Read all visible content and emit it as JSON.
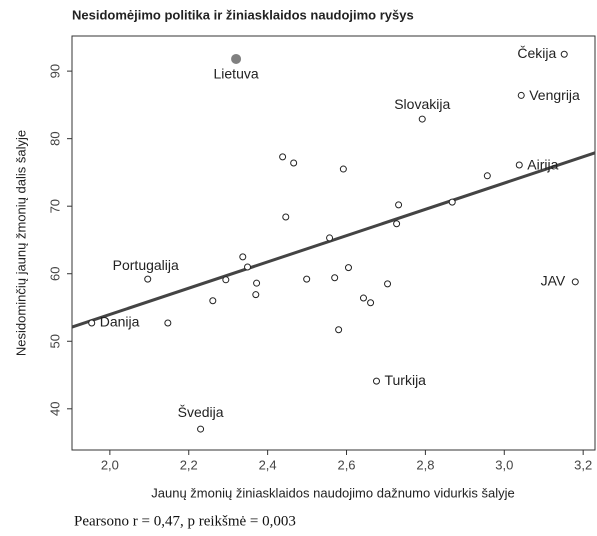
{
  "chart_data": {
    "type": "scatter",
    "title": "Nesidomėjimo politika ir žiniasklaidos naudojimo ryšys",
    "x_label": "Jaunų žmonių žiniasklaidos naudojimo dažnumo vidurkis šalyje",
    "y_label": "Nesidominčių jaunų žmonių dalis šalyje",
    "caption": "Pearsono r = 0,47, p reikšmė = 0,003",
    "x": [
      2.32,
      3.152,
      3.043,
      2.792,
      3.038,
      2.096,
      1.954,
      3.18,
      2.676,
      2.23,
      2.957,
      2.438,
      2.466,
      2.592,
      2.446,
      2.732,
      2.868,
      2.727,
      2.557,
      2.337,
      2.349,
      2.605,
      2.294,
      2.372,
      2.499,
      2.57,
      2.704,
      2.37,
      2.261,
      2.643,
      2.661,
      2.58,
      2.147
    ],
    "values": [
      91.8,
      92.5,
      86.4,
      82.9,
      76.1,
      59.2,
      52.7,
      58.8,
      44.1,
      37.0,
      74.5,
      77.3,
      76.4,
      75.5,
      68.4,
      70.2,
      70.6,
      67.4,
      65.3,
      62.5,
      61.0,
      60.9,
      59.1,
      58.6,
      59.2,
      59.4,
      58.5,
      56.9,
      56.0,
      56.4,
      55.7,
      51.7,
      52.7
    ],
    "labels": [
      "Lietuva",
      "Čekija",
      "Vengrija",
      "Slovakija",
      "Airija",
      "Portugalija",
      "Danija",
      "JAV",
      "Turkija",
      "Švedija",
      null,
      null,
      null,
      null,
      null,
      null,
      null,
      null,
      null,
      null,
      null,
      null,
      null,
      null,
      null,
      null,
      null,
      null,
      null,
      null,
      null,
      null,
      null
    ],
    "colors": [
      "#808080",
      "#ffffff",
      "#ffffff",
      "#ffffff",
      "#ffffff",
      "#ffffff",
      "#ffffff",
      "#ffffff",
      "#ffffff",
      "#ffffff",
      "#ffffff",
      "#ffffff",
      "#ffffff",
      "#ffffff",
      "#ffffff",
      "#ffffff",
      "#ffffff",
      "#ffffff",
      "#ffffff",
      "#ffffff",
      "#ffffff",
      "#ffffff",
      "#ffffff",
      "#ffffff",
      "#ffffff",
      "#ffffff",
      "#ffffff",
      "#ffffff",
      "#ffffff",
      "#ffffff",
      "#ffffff",
      "#ffffff",
      "#ffffff"
    ],
    "trend": {
      "x": [
        1.904,
        3.23
      ],
      "values": [
        52.1,
        77.9
      ],
      "color": "#444444"
    },
    "xlim": [
      1.904,
      3.23
    ],
    "ylim": [
      33.9,
      95.2
    ],
    "xticks": [
      {
        "value": 2.0,
        "label": "2,0"
      },
      {
        "value": 2.2,
        "label": "2,2"
      },
      {
        "value": 2.4,
        "label": "2,4"
      },
      {
        "value": 2.6,
        "label": "2,6"
      },
      {
        "value": 2.8,
        "label": "2,8"
      },
      {
        "value": 3.0,
        "label": "3,0"
      },
      {
        "value": 3.2,
        "label": "3,2"
      }
    ],
    "yticks": [
      40,
      50,
      60,
      70,
      80,
      90
    ],
    "grid": false
  }
}
